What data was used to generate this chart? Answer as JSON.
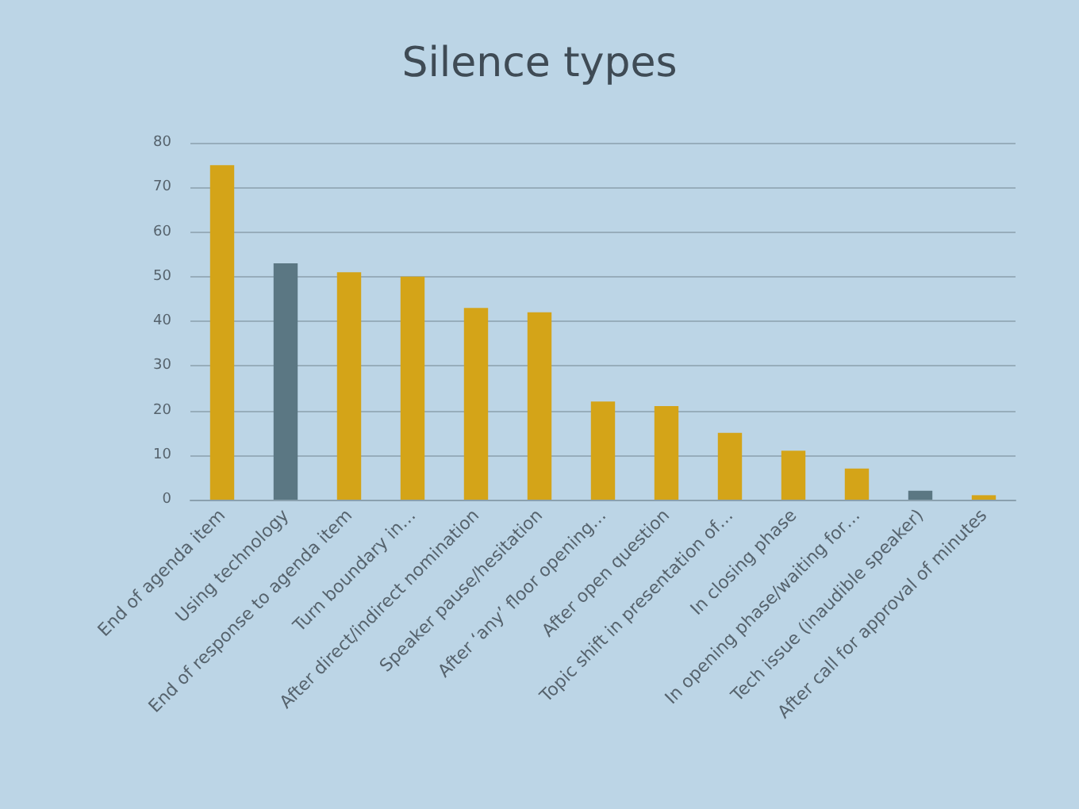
{
  "chart_data": {
    "type": "bar",
    "title": "Silence types",
    "categories": [
      "End of agenda item",
      "Using technology",
      "End of response to agenda item",
      "Turn boundary in…",
      "After direct/indirect nomination",
      "Speaker pause/hesitation",
      "After ‘any’ floor opening…",
      "After open question",
      "Topic shift in presentation of…",
      "In closing phase",
      "In opening phase/waiting for…",
      "Tech issue (inaudible speaker)",
      "After call for approval of minutes"
    ],
    "values": [
      75,
      53,
      51,
      50,
      43,
      42,
      22,
      21,
      15,
      11,
      7,
      2,
      1
    ],
    "colors": [
      "#d4a418",
      "#5b7783",
      "#d4a418",
      "#d4a418",
      "#d4a418",
      "#d4a418",
      "#d4a418",
      "#d4a418",
      "#d4a418",
      "#d4a418",
      "#d4a418",
      "#5b7783",
      "#d4a418"
    ],
    "ylim": [
      0,
      80
    ],
    "yticks": [
      0,
      10,
      20,
      30,
      40,
      50,
      60,
      70,
      80
    ],
    "grid": "y"
  }
}
